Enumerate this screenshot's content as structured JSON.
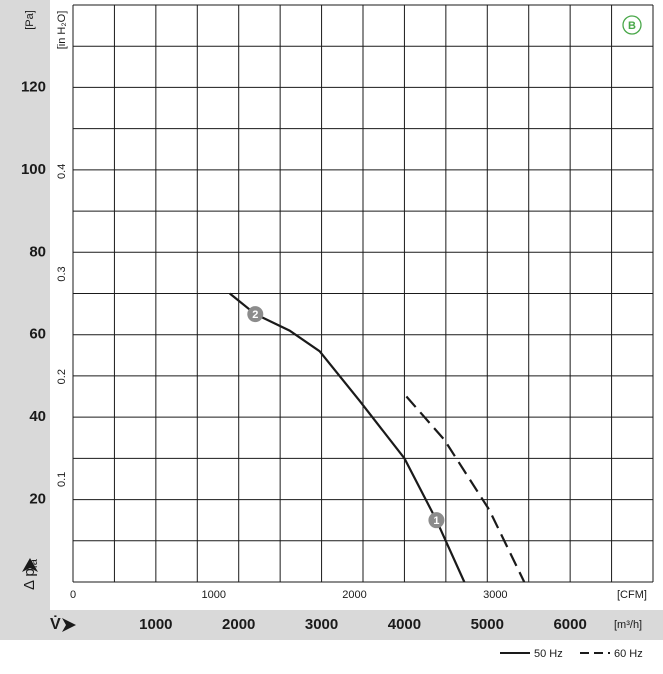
{
  "chart_data": {
    "type": "line",
    "badge": "B",
    "y_unit": "[Pa]",
    "y2_unit": "[in H₂O]",
    "y_label": "Δ p",
    "y_label_sub": "fa",
    "x_label": "V̇",
    "x_unit": "[m³/h]",
    "x2_unit": "[CFM]",
    "xlim": [
      0,
      7000
    ],
    "xticks": [
      1000,
      2000,
      3000,
      4000,
      5000,
      6000
    ],
    "x_grid": [
      0,
      500,
      1000,
      1500,
      2000,
      2500,
      3000,
      3500,
      4000,
      4500,
      5000,
      5500,
      6000,
      6500,
      7000
    ],
    "x2lim": [
      0,
      4120
    ],
    "x2ticks": [
      0,
      1000,
      2000,
      3000
    ],
    "ylim": [
      0,
      140
    ],
    "yticks": [
      20,
      40,
      60,
      80,
      100,
      120
    ],
    "y_grid": [
      0,
      10,
      20,
      30,
      40,
      50,
      60,
      70,
      80,
      90,
      100,
      110,
      120,
      130,
      140
    ],
    "y2lim": [
      0,
      0.562
    ],
    "y2ticks": [
      0.1,
      0.2,
      0.3,
      0.4
    ],
    "series": [
      {
        "name": "50 Hz",
        "color": "#1a1a1a",
        "dash": false,
        "x": [
          1892,
          2200,
          2614,
          2976,
          3458,
          4000,
          4386,
          4723
        ],
        "values": [
          70,
          65,
          61,
          56,
          44,
          30,
          15,
          0
        ]
      },
      {
        "name": "60 Hz",
        "color": "#1a1a1a",
        "dash": true,
        "x": [
          4024,
          4482,
          5024,
          5446
        ],
        "values": [
          45,
          34.5,
          17.5,
          0
        ]
      }
    ],
    "annotations": [
      {
        "text": "2",
        "x": 2200,
        "y": 65
      },
      {
        "text": "1",
        "x": 4386,
        "y": 15
      }
    ]
  }
}
